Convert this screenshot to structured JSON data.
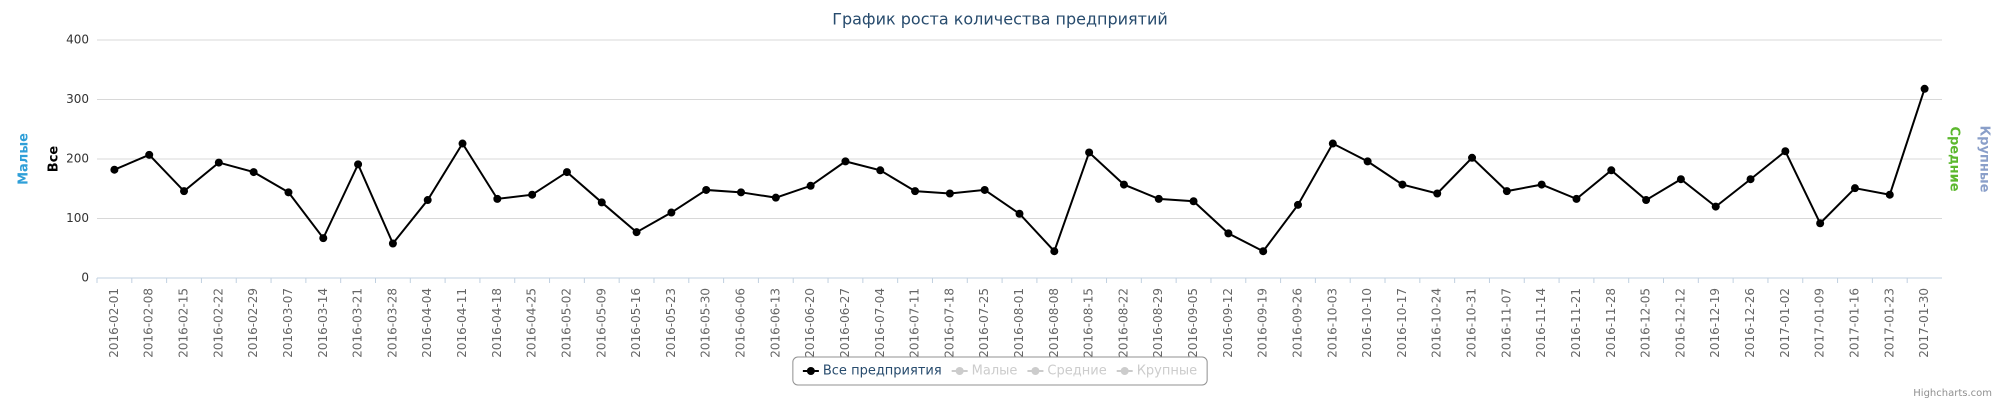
{
  "chart_data": {
    "type": "line",
    "title": "График роста количества предприятий",
    "credits": "Highcharts.com",
    "categories": [
      "2016-02-01",
      "2016-02-08",
      "2016-02-15",
      "2016-02-22",
      "2016-02-29",
      "2016-03-07",
      "2016-03-14",
      "2016-03-21",
      "2016-03-28",
      "2016-04-04",
      "2016-04-11",
      "2016-04-18",
      "2016-04-25",
      "2016-05-02",
      "2016-05-09",
      "2016-05-16",
      "2016-05-23",
      "2016-05-30",
      "2016-06-06",
      "2016-06-13",
      "2016-06-20",
      "2016-06-27",
      "2016-07-04",
      "2016-07-11",
      "2016-07-18",
      "2016-07-25",
      "2016-08-01",
      "2016-08-08",
      "2016-08-15",
      "2016-08-22",
      "2016-08-29",
      "2016-09-05",
      "2016-09-12",
      "2016-09-19",
      "2016-09-26",
      "2016-10-03",
      "2016-10-10",
      "2016-10-17",
      "2016-10-24",
      "2016-10-31",
      "2016-11-07",
      "2016-11-14",
      "2016-11-21",
      "2016-11-28",
      "2016-12-05",
      "2016-12-12",
      "2016-12-19",
      "2016-12-26",
      "2017-01-02",
      "2017-01-09",
      "2017-01-16",
      "2017-01-23",
      "2017-01-30"
    ],
    "series": [
      {
        "name": "Все предприятия",
        "color": "#000000",
        "visible": true,
        "values": [
          182,
          207,
          146,
          194,
          178,
          144,
          67,
          191,
          58,
          131,
          226,
          133,
          140,
          178,
          127,
          77,
          110,
          148,
          144,
          135,
          155,
          196,
          181,
          146,
          142,
          148,
          108,
          45,
          211,
          157,
          133,
          129,
          75,
          45,
          123,
          226,
          196,
          157,
          142,
          202,
          146,
          157,
          133,
          181,
          131,
          166,
          120,
          166,
          213,
          92,
          151,
          140,
          318
        ]
      },
      {
        "name": "Малые",
        "color": "#2f9fd8",
        "visible": false
      },
      {
        "name": "Средние",
        "color": "#5cb82e",
        "visible": false
      },
      {
        "name": "Крупные",
        "color": "#8a9fc9",
        "visible": false
      }
    ],
    "axes": [
      {
        "title": "Малые",
        "color": "#2f9fd8",
        "side": "left"
      },
      {
        "title": "Все",
        "color": "#000000",
        "side": "left"
      },
      {
        "title": "Средние",
        "color": "#5cb82e",
        "side": "right"
      },
      {
        "title": "Крупные",
        "color": "#8a9fc9",
        "side": "right"
      }
    ],
    "ylim": [
      0,
      400
    ],
    "yticks": [
      0,
      100,
      200,
      300,
      400
    ],
    "grid": true
  }
}
